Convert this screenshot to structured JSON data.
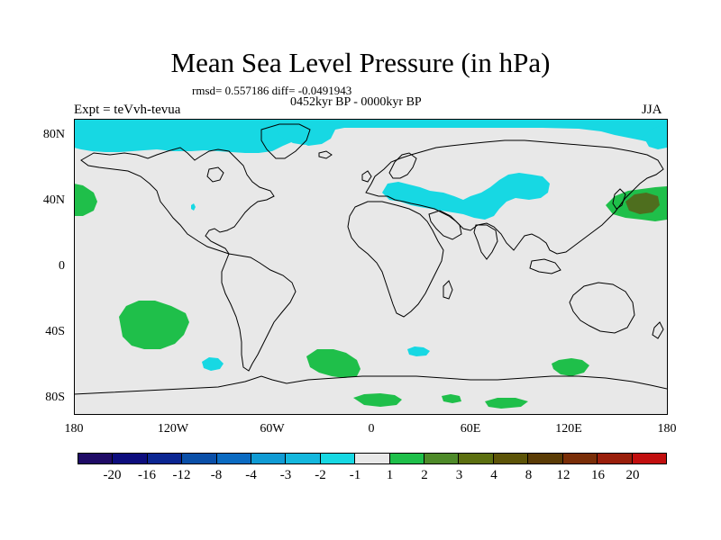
{
  "title": "Mean Sea Level Pressure (in hPa)",
  "stats_line": "rmsd= 0.557186 diff= -0.0491943",
  "period_line": "0452kyr BP - 0000kyr BP",
  "experiment_line": "Expt = teVvh-tevua",
  "season": "JJA",
  "map": {
    "projection": "equirectangular",
    "lon_range": [
      -180,
      180
    ],
    "lat_range": [
      -90,
      90
    ],
    "background_color": "#e8e8e8",
    "coast_color": "#000000",
    "lat_ticks": [
      "80N",
      "40N",
      "0",
      "40S",
      "80S"
    ],
    "lon_ticks": [
      "180",
      "120W",
      "60W",
      "0",
      "60E",
      "120E",
      "180"
    ]
  },
  "colorbar": {
    "colors": [
      "#1f0b66",
      "#0d0d7d",
      "#0b2692",
      "#0a4fa8",
      "#0b6bc2",
      "#109bd4",
      "#14b7dd",
      "#17d8e3",
      "#e8e8e8",
      "#1fbf4a",
      "#4e8a29",
      "#5c6f10",
      "#5d5408",
      "#5b3c06",
      "#7a2e08",
      "#9a1f0b",
      "#c20f0f"
    ],
    "tick_labels": [
      "-20",
      "-16",
      "-12",
      "-8",
      "-4",
      "-3",
      "-2",
      "-1",
      "1",
      "2",
      "3",
      "4",
      "8",
      "12",
      "16",
      "20"
    ]
  },
  "anomaly_colors": {
    "cyan": "#17d8e3",
    "green": "#1fbf4a",
    "dark_green": "#4e6e1e"
  }
}
